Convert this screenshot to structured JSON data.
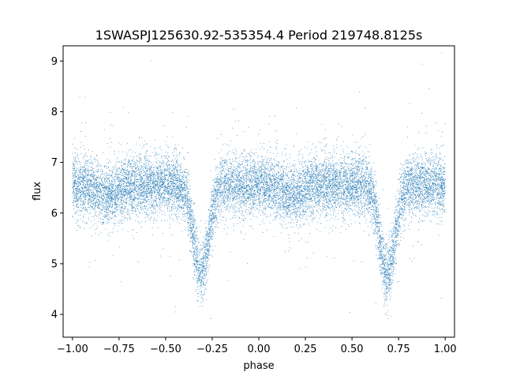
{
  "chart_data": {
    "type": "scatter",
    "title": "1SWASPJ125630.92-535354.4 Period 219748.8125s",
    "xlabel": "phase",
    "ylabel": "flux",
    "xlim": [
      -1.05,
      1.05
    ],
    "ylim": [
      3.55,
      9.3
    ],
    "x_ticks": [
      -1.0,
      -0.75,
      -0.5,
      -0.25,
      0.0,
      0.25,
      0.5,
      0.75,
      1.0
    ],
    "x_tick_labels": [
      "−1.00",
      "−0.75",
      "−0.50",
      "−0.25",
      "0.00",
      "0.25",
      "0.50",
      "0.75",
      "1.00"
    ],
    "y_ticks": [
      4,
      5,
      6,
      7,
      8,
      9
    ],
    "y_tick_labels": [
      "4",
      "5",
      "6",
      "7",
      "8",
      "9"
    ],
    "grid": false,
    "legend": "none",
    "marker_color": "#1f77b4",
    "series": [
      {
        "description_points": "folded light curve, phase range -1 to 1",
        "baseline_flux": 6.55,
        "scatter_sigma": 0.3,
        "primary_eclipse_phases": [
          -0.31,
          0.69
        ],
        "primary_eclipse_min_flux": 4.8,
        "secondary_eclipse_phases": [
          0.19,
          -0.81
        ],
        "secondary_eclipse_min_flux": 6.35
      }
    ]
  }
}
